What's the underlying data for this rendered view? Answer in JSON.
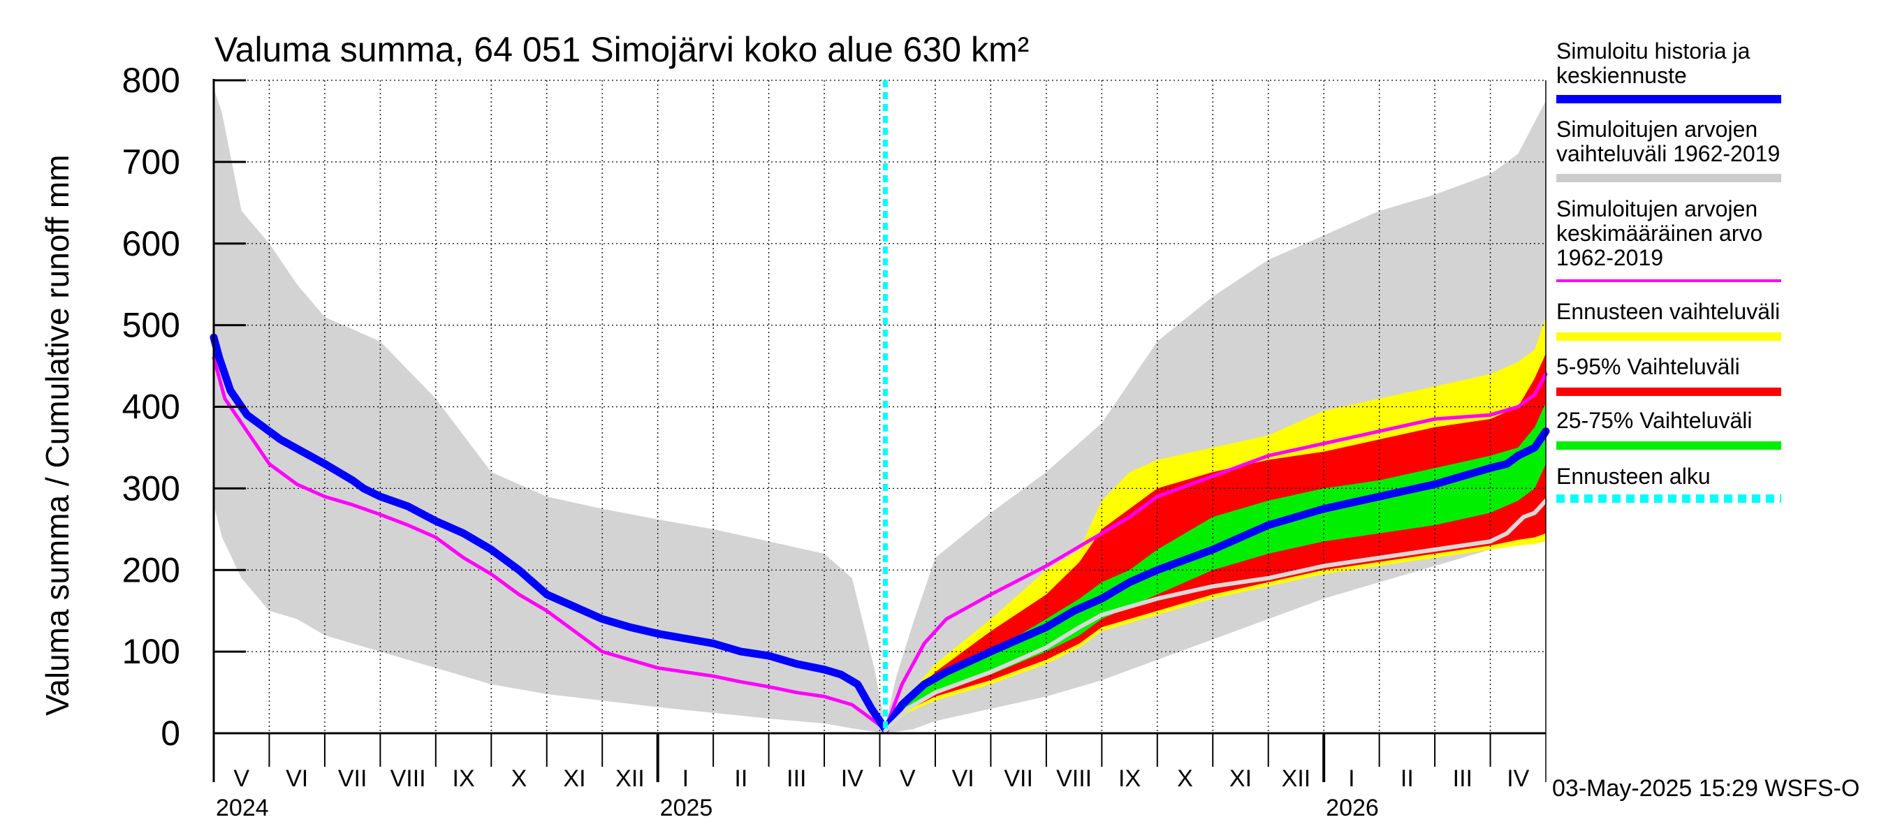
{
  "chart_data": {
    "type": "area",
    "title": "Valuma summa, 64 051 Simojärvi koko alue 630 km²",
    "ylabel": "Valuma summa / Cumulative runoff    mm",
    "ylim": [
      0,
      800
    ],
    "yticks": [
      0,
      100,
      200,
      300,
      400,
      500,
      600,
      700,
      800
    ],
    "x_unit": "months since 2024-04-29",
    "xlim": [
      0,
      24
    ],
    "forecast_start": 12.1,
    "months": [
      {
        "label": "V",
        "x": 0.0
      },
      {
        "label": "VI",
        "x": 1.0
      },
      {
        "label": "VII",
        "x": 2.0
      },
      {
        "label": "VIII",
        "x": 3.0
      },
      {
        "label": "IX",
        "x": 4.0
      },
      {
        "label": "X",
        "x": 5.0
      },
      {
        "label": "XI",
        "x": 6.0
      },
      {
        "label": "XII",
        "x": 7.0
      },
      {
        "label": "I",
        "x": 8.0
      },
      {
        "label": "II",
        "x": 9.0
      },
      {
        "label": "III",
        "x": 10.0
      },
      {
        "label": "IV",
        "x": 11.0
      },
      {
        "label": "V",
        "x": 12.0
      },
      {
        "label": "VI",
        "x": 13.0
      },
      {
        "label": "VII",
        "x": 14.0
      },
      {
        "label": "VIII",
        "x": 15.0
      },
      {
        "label": "IX",
        "x": 16.0
      },
      {
        "label": "X",
        "x": 17.0
      },
      {
        "label": "XI",
        "x": 18.0
      },
      {
        "label": "XII",
        "x": 19.0
      },
      {
        "label": "I",
        "x": 20.0
      },
      {
        "label": "II",
        "x": 21.0
      },
      {
        "label": "III",
        "x": 22.0
      },
      {
        "label": "IV",
        "x": 23.0
      }
    ],
    "years": [
      {
        "label": "2024",
        "x": 0.0
      },
      {
        "label": "2025",
        "x": 8.0
      },
      {
        "label": "2026",
        "x": 20.0
      }
    ],
    "series": [
      {
        "name": "Simuloitujen arvojen vaihteluväli 1962-2019",
        "kind": "band",
        "color": "#d3d3d3",
        "x": [
          0,
          0.15,
          0.5,
          1.0,
          1.5,
          2.0,
          3.0,
          4.0,
          5.0,
          6.0,
          7.0,
          8.0,
          9.0,
          10.0,
          11.0,
          11.5,
          11.9,
          12.1,
          12.3,
          12.6,
          13.0,
          14.0,
          15.0,
          16.0,
          17.0,
          18.0,
          19.0,
          20.0,
          21.0,
          22.0,
          23.0,
          23.5,
          24.0
        ],
        "upper": [
          790,
          760,
          640,
          600,
          550,
          510,
          480,
          410,
          320,
          290,
          275,
          262,
          250,
          235,
          220,
          190,
          80,
          10,
          70,
          135,
          215,
          270,
          320,
          380,
          480,
          535,
          580,
          610,
          640,
          660,
          685,
          710,
          775
        ],
        "lower": [
          280,
          240,
          190,
          150,
          140,
          120,
          100,
          80,
          60,
          48,
          40,
          32,
          25,
          18,
          12,
          6,
          2,
          0,
          2,
          5,
          15,
          30,
          45,
          65,
          90,
          115,
          140,
          165,
          185,
          205,
          225,
          235,
          250
        ]
      },
      {
        "name": "Ennusteen vaihteluväli",
        "kind": "band",
        "color": "#ffff00",
        "x": [
          12.1,
          12.5,
          13.0,
          14.0,
          15.0,
          15.6,
          16.0,
          16.5,
          17.0,
          18.0,
          19.0,
          20.0,
          21.0,
          22.0,
          23.0,
          23.5,
          23.8,
          24.0
        ],
        "upper": [
          8,
          45,
          85,
          140,
          200,
          225,
          285,
          320,
          335,
          350,
          365,
          395,
          410,
          425,
          440,
          455,
          470,
          510
        ],
        "lower": [
          2,
          25,
          40,
          60,
          85,
          105,
          125,
          135,
          145,
          165,
          180,
          195,
          205,
          215,
          225,
          230,
          232,
          235
        ]
      },
      {
        "name": "5-95% Vaihteluväli",
        "kind": "band",
        "color": "#ff0000",
        "x": [
          12.1,
          12.5,
          13.0,
          14.0,
          15.0,
          15.6,
          16.0,
          16.5,
          17.0,
          18.0,
          19.0,
          20.0,
          21.0,
          22.0,
          23.0,
          23.5,
          23.8,
          24.0
        ],
        "upper": [
          6,
          40,
          75,
          125,
          170,
          210,
          250,
          275,
          300,
          320,
          335,
          345,
          360,
          375,
          385,
          400,
          435,
          465
        ],
        "lower": [
          3,
          28,
          45,
          65,
          90,
          110,
          130,
          140,
          150,
          170,
          185,
          200,
          210,
          220,
          230,
          237,
          240,
          245
        ]
      },
      {
        "name": "25-75% Vaihteluväli",
        "kind": "band",
        "color": "#00ee00",
        "x": [
          12.1,
          12.5,
          13.0,
          14.0,
          15.0,
          15.6,
          16.0,
          16.5,
          17.0,
          18.0,
          19.0,
          20.0,
          21.0,
          22.0,
          23.0,
          23.5,
          23.8,
          24.0
        ],
        "upper": [
          5,
          38,
          65,
          100,
          140,
          165,
          185,
          200,
          225,
          265,
          285,
          300,
          310,
          325,
          340,
          350,
          375,
          405
        ],
        "lower": [
          4,
          32,
          52,
          72,
          100,
          120,
          140,
          155,
          170,
          200,
          220,
          235,
          245,
          255,
          270,
          285,
          300,
          330
        ]
      },
      {
        "name": "Simuloitujen arvojen keskimääräinen arvo 1962-2019",
        "kind": "line",
        "color": "#ff00ff",
        "width": 5,
        "x": [
          0,
          0.2,
          0.6,
          1.0,
          1.5,
          2.0,
          2.5,
          3.0,
          3.5,
          4.0,
          4.5,
          5.0,
          5.5,
          6.0,
          6.5,
          7.0,
          7.5,
          8.0,
          8.5,
          9.0,
          9.5,
          10.0,
          10.5,
          11.0,
          11.5,
          11.8,
          12.1,
          12.4,
          12.8,
          13.2,
          14.0,
          15.0,
          15.5,
          16.0,
          16.5,
          17.0,
          18.0,
          19.0,
          20.0,
          21.0,
          22.0,
          23.0,
          23.5,
          23.8,
          24.0
        ],
        "y": [
          460,
          410,
          370,
          330,
          305,
          290,
          280,
          268,
          255,
          240,
          215,
          195,
          170,
          150,
          125,
          100,
          90,
          80,
          75,
          70,
          63,
          57,
          50,
          45,
          35,
          20,
          5,
          60,
          110,
          140,
          170,
          205,
          225,
          245,
          265,
          290,
          315,
          340,
          355,
          370,
          385,
          390,
          400,
          415,
          440
        ]
      },
      {
        "name": "Simuloitu historia ja keskiennuste",
        "kind": "line",
        "color": "#0000ff",
        "width": 11,
        "x": [
          0,
          0.1,
          0.3,
          0.6,
          0.9,
          1.2,
          1.6,
          2.0,
          2.5,
          2.7,
          3.0,
          3.5,
          4.0,
          4.5,
          5.0,
          5.5,
          6.0,
          6.5,
          7.0,
          7.5,
          8.0,
          9.0,
          9.5,
          10.0,
          10.5,
          11.0,
          11.3,
          11.6,
          11.85,
          12.1,
          12.4,
          12.8,
          13.2,
          14.0,
          15.0,
          15.5,
          16.0,
          16.5,
          17.0,
          18.0,
          19.0,
          20.0,
          21.0,
          22.0,
          23.0,
          23.3,
          23.5,
          23.8,
          24.0
        ],
        "y": [
          485,
          460,
          420,
          390,
          375,
          360,
          345,
          330,
          310,
          300,
          290,
          278,
          260,
          245,
          225,
          200,
          170,
          155,
          140,
          130,
          122,
          110,
          100,
          95,
          85,
          78,
          72,
          60,
          30,
          5,
          35,
          60,
          75,
          100,
          130,
          150,
          165,
          185,
          200,
          225,
          255,
          275,
          290,
          305,
          325,
          330,
          340,
          350,
          370
        ]
      },
      {
        "name": "Median (grey)",
        "kind": "line",
        "color": "#d8d8d8",
        "width": 6,
        "x": [
          12.1,
          12.5,
          13.0,
          14.0,
          15.0,
          15.6,
          16.0,
          16.5,
          17.0,
          18.0,
          19.0,
          20.0,
          21.0,
          22.0,
          23.0,
          23.3,
          23.6,
          23.8,
          24.0
        ],
        "y": [
          3,
          30,
          50,
          75,
          105,
          130,
          145,
          155,
          165,
          180,
          190,
          205,
          215,
          225,
          235,
          245,
          265,
          270,
          285
        ]
      }
    ]
  },
  "legend": [
    {
      "lines": [
        "Simuloitu historia ja",
        "keskiennuste"
      ],
      "color": "#0000ff",
      "style": "solid"
    },
    {
      "lines": [
        "Simuloitujen arvojen",
        "vaihteluväli 1962-2019"
      ],
      "color": "#cccccc",
      "style": "solid"
    },
    {
      "lines": [
        "Simuloitujen arvojen",
        "keskimääräinen arvo",
        "   1962-2019"
      ],
      "color": "#ff00ff",
      "style": "thin"
    },
    {
      "lines": [
        "Ennusteen vaihteluväli"
      ],
      "color": "#ffff00",
      "style": "solid"
    },
    {
      "lines": [
        "5-95% Vaihteluväli"
      ],
      "color": "#ff0000",
      "style": "solid"
    },
    {
      "lines": [
        "25-75% Vaihteluväli"
      ],
      "color": "#00ee00",
      "style": "solid"
    },
    {
      "lines": [
        "Ennusteen alku"
      ],
      "color": "#00ffff",
      "style": "dashed"
    }
  ],
  "footer": "03-May-2025 15:29 WSFS-O",
  "colors": {
    "forecast_start": "#00ffff",
    "grid": "#000000",
    "background": "#ffffff"
  }
}
